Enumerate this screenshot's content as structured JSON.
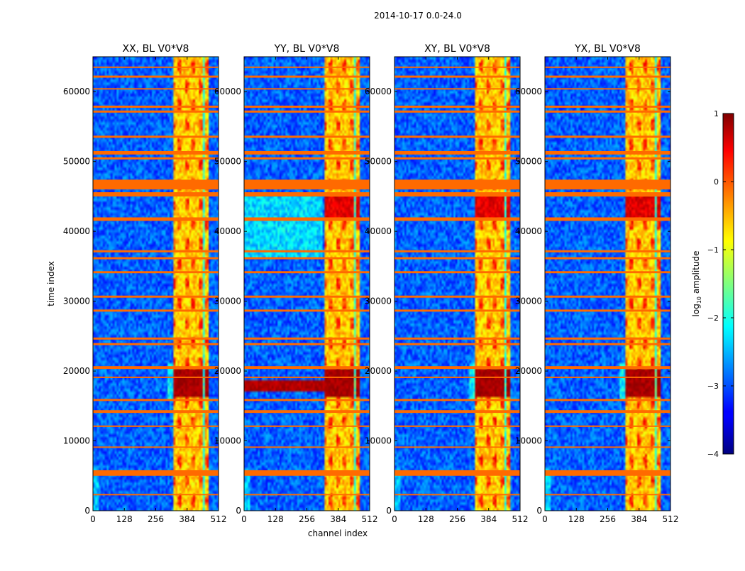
{
  "chart_data": {
    "type": "heatmap",
    "suptitle": "2014-10-17 0.0-24.0",
    "xlabel": "channel index",
    "ylabel": "time index",
    "xlim": [
      0,
      512
    ],
    "ylim": [
      0,
      65000
    ],
    "x_ticks": [
      0,
      128,
      256,
      384,
      512
    ],
    "y_ticks": [
      0,
      10000,
      20000,
      30000,
      40000,
      50000,
      60000
    ],
    "colormap": "jet",
    "flagged_color": "#ff6a00",
    "panels": [
      {
        "title": "XX, BL V0*V8",
        "polarization": "XX"
      },
      {
        "title": "YY, BL V0*V8",
        "polarization": "YY"
      },
      {
        "title": "XY, BL V0*V8",
        "polarization": "XY"
      },
      {
        "title": "YX, BL V0*V8",
        "polarization": "YX"
      }
    ],
    "features": {
      "rfi_band_channels": [
        325,
        475
      ],
      "rfi_gap_channels": [
        [
          350,
          354
        ],
        [
          383,
          387
        ],
        [
          413,
          418
        ],
        [
          446,
          452
        ]
      ],
      "strong_event_time": [
        16200,
        20500
      ],
      "flagged_time_bands": [
        [
          46000,
          47400
        ],
        [
          45000,
          45600
        ],
        [
          41500,
          42000
        ],
        [
          51000,
          51500
        ],
        [
          50300,
          50600
        ],
        [
          53400,
          53700
        ],
        [
          57000,
          57300
        ],
        [
          57700,
          58000
        ],
        [
          62000,
          62300
        ],
        [
          14000,
          14400
        ],
        [
          15700,
          16000
        ],
        [
          5000,
          5800
        ],
        [
          2200,
          2400
        ],
        [
          20300,
          20700
        ],
        [
          23700,
          24000
        ],
        [
          24500,
          24800
        ],
        [
          28500,
          28800
        ],
        [
          30500,
          30800
        ],
        [
          34000,
          34300
        ],
        [
          36000,
          36300
        ],
        [
          37000,
          37300
        ],
        [
          9000,
          9200
        ],
        [
          12000,
          12200
        ],
        [
          19000,
          19200
        ],
        [
          60300,
          60500
        ],
        [
          63400,
          63600
        ]
      ]
    },
    "colorbar": {
      "label": "log10 amplitude",
      "label_base": "log",
      "label_subscript": "10",
      "label_rest": " amplitude",
      "range": [
        -4,
        1
      ],
      "ticks": [
        1,
        0,
        -1,
        -2,
        -3,
        -4
      ],
      "tick_labels": [
        "1",
        "0",
        "−1",
        "−2",
        "−3",
        "−4"
      ]
    }
  }
}
